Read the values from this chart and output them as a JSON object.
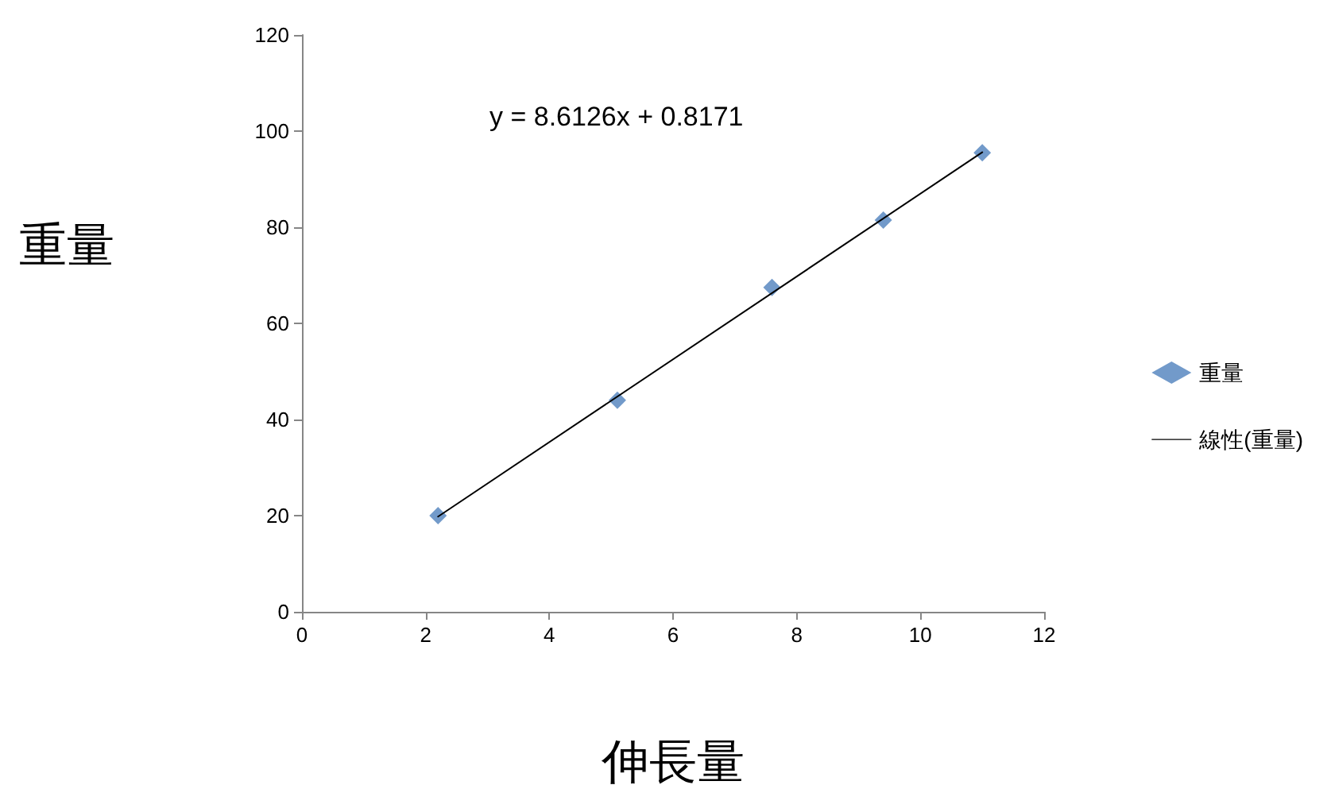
{
  "chart_data": {
    "type": "scatter",
    "xlabel": "伸長量",
    "ylabel": "重量",
    "annotations": [
      "y = 8.6126x + 0.8171"
    ],
    "series": [
      {
        "name": "重量",
        "color": "#4f81bd",
        "x": [
          2.2,
          5.1,
          7.6,
          9.4,
          11
        ],
        "values": [
          20,
          44,
          67.5,
          81.5,
          95.5
        ],
        "marker": "diamond"
      },
      {
        "name": "線性(重量)",
        "type": "line",
        "color": "#000000",
        "x": [
          2.2,
          11
        ],
        "values": [
          19.8,
          95.6
        ],
        "marker": "none",
        "line_style": "solid"
      }
    ],
    "xlim": [
      0,
      12
    ],
    "xticks": [
      0,
      2,
      4,
      6,
      8,
      10,
      12
    ],
    "ylim": [
      0,
      120
    ],
    "yticks": [
      0,
      20,
      40,
      60,
      80,
      100,
      120
    ],
    "grid": false,
    "legend": "right"
  }
}
